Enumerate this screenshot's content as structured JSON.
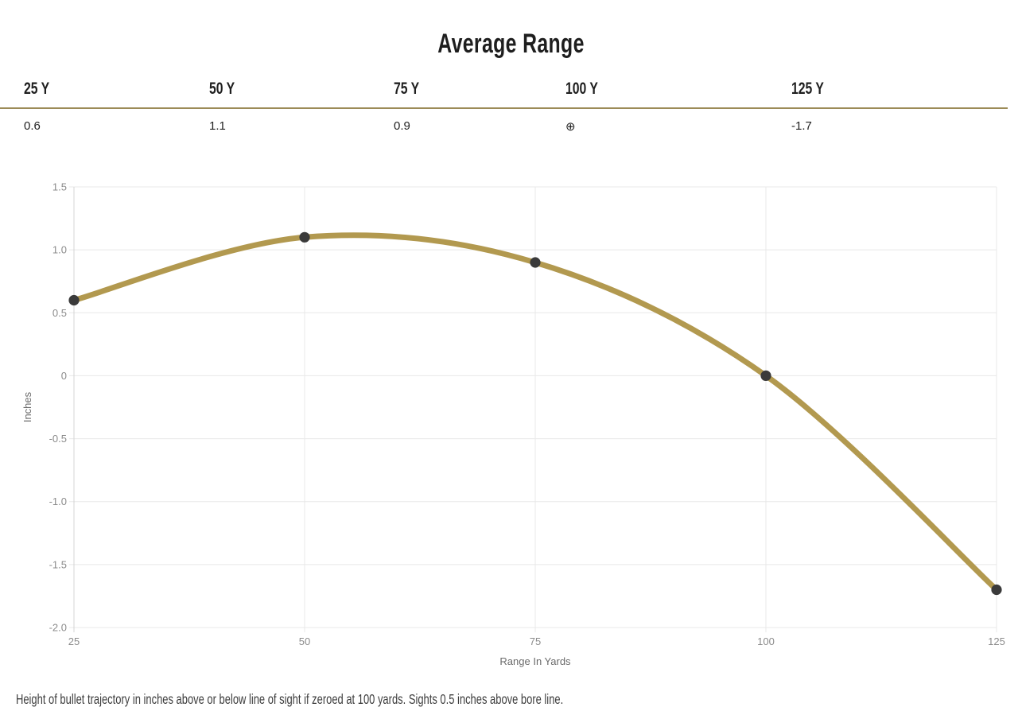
{
  "title": "Average Range",
  "table": {
    "border_color": "#9c8b57",
    "columns": [
      {
        "label": "25 Y",
        "value": "0.6"
      },
      {
        "label": "50 Y",
        "value": "1.1"
      },
      {
        "label": "75 Y",
        "value": "0.9"
      },
      {
        "label": "100 Y",
        "value": "⊕"
      },
      {
        "label": "125 Y",
        "value": "-1.7"
      }
    ]
  },
  "chart_data": {
    "type": "line",
    "title": "Average Range",
    "x": [
      25,
      50,
      75,
      100,
      125
    ],
    "values": [
      0.6,
      1.1,
      0.9,
      0,
      -1.7
    ],
    "xlabel": "Range In Yards",
    "ylabel": "Inches",
    "xlim": [
      25,
      125
    ],
    "ylim": [
      -2.0,
      1.5
    ],
    "x_ticks": [
      25,
      50,
      75,
      100,
      125
    ],
    "x_tick_labels": [
      "25",
      "50",
      "75",
      "100",
      "125"
    ],
    "y_ticks": [
      1.5,
      1.0,
      0.5,
      0,
      -0.5,
      -1.0,
      -1.5,
      -2.0
    ],
    "y_tick_labels": [
      "1.5",
      "1.0",
      "0.5",
      "0",
      "-0.5",
      "-1.0",
      "-1.5",
      "-2.0"
    ],
    "grid": true,
    "legend": "none",
    "curve": "catmull-rom",
    "line_color": "#b2994f",
    "point_color": "#3a3a3a",
    "grid_color": "#e8e8e8",
    "axis_color": "#d4d4d4",
    "tick_label_color": "#8b8b8b",
    "axis_label_color": "#6b6b6b"
  },
  "footer": "Height of bullet trajectory in inches above or below line of sight if zeroed at 100 yards. Sights 0.5 inches above bore line."
}
